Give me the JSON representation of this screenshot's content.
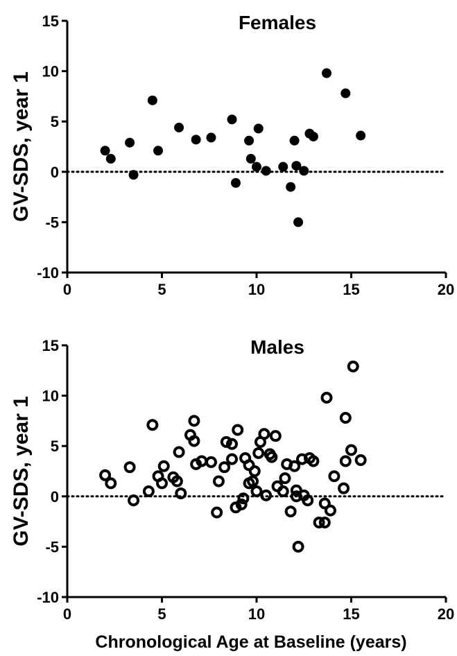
{
  "chart_data": [
    {
      "type": "scatter",
      "title": "Females",
      "xlabel": "",
      "ylabel": "GV-SDS, year 1",
      "xlim": [
        0,
        20
      ],
      "ylim": [
        -10,
        15
      ],
      "xticks": [
        "0",
        "5",
        "10",
        "15",
        "20"
      ],
      "yticks": [
        "-10",
        "-5",
        "0",
        "5",
        "10",
        "15"
      ],
      "reference_line": {
        "y": 0,
        "style": "dotted"
      },
      "marker": "filled-circle",
      "color": "#000000",
      "points": [
        [
          2.0,
          2.1
        ],
        [
          2.3,
          1.3
        ],
        [
          3.3,
          2.9
        ],
        [
          3.5,
          -0.3
        ],
        [
          4.5,
          7.1
        ],
        [
          4.8,
          2.1
        ],
        [
          5.9,
          4.4
        ],
        [
          6.8,
          3.2
        ],
        [
          7.6,
          3.4
        ],
        [
          8.7,
          5.2
        ],
        [
          8.9,
          -1.1
        ],
        [
          9.6,
          3.1
        ],
        [
          9.7,
          1.3
        ],
        [
          10.0,
          0.5
        ],
        [
          10.1,
          4.3
        ],
        [
          10.5,
          0.1
        ],
        [
          11.4,
          0.5
        ],
        [
          11.8,
          -1.5
        ],
        [
          12.0,
          3.1
        ],
        [
          12.1,
          0.6
        ],
        [
          12.2,
          -5.0
        ],
        [
          12.5,
          0.1
        ],
        [
          12.8,
          3.8
        ],
        [
          13.0,
          3.5
        ],
        [
          13.7,
          9.8
        ],
        [
          14.7,
          7.8
        ],
        [
          15.5,
          3.6
        ]
      ]
    },
    {
      "type": "scatter",
      "title": "Males",
      "xlabel": "Chronological Age at Baseline (years)",
      "ylabel": "GV-SDS, year 1",
      "xlim": [
        0,
        20
      ],
      "ylim": [
        -10,
        15
      ],
      "xticks": [
        "0",
        "5",
        "10",
        "15",
        "20"
      ],
      "yticks": [
        "-10",
        "-5",
        "0",
        "5",
        "10",
        "15"
      ],
      "reference_line": {
        "y": 0,
        "style": "dotted"
      },
      "marker": "open-circle",
      "color": "#000000",
      "points": [
        [
          2.0,
          2.1
        ],
        [
          2.3,
          1.3
        ],
        [
          3.3,
          2.9
        ],
        [
          3.5,
          -0.4
        ],
        [
          4.3,
          0.5
        ],
        [
          4.5,
          7.1
        ],
        [
          4.8,
          2.0
        ],
        [
          5.0,
          1.3
        ],
        [
          5.1,
          3.0
        ],
        [
          5.6,
          1.9
        ],
        [
          5.8,
          1.5
        ],
        [
          5.9,
          4.4
        ],
        [
          6.0,
          0.3
        ],
        [
          6.5,
          6.1
        ],
        [
          6.7,
          5.5
        ],
        [
          6.7,
          7.5
        ],
        [
          6.8,
          3.2
        ],
        [
          7.1,
          3.5
        ],
        [
          7.6,
          3.4
        ],
        [
          7.9,
          -1.6
        ],
        [
          8.0,
          1.5
        ],
        [
          8.3,
          2.9
        ],
        [
          8.4,
          5.4
        ],
        [
          8.7,
          5.2
        ],
        [
          8.7,
          3.7
        ],
        [
          8.9,
          -1.1
        ],
        [
          9.0,
          6.6
        ],
        [
          9.2,
          -0.8
        ],
        [
          9.3,
          -0.2
        ],
        [
          9.4,
          3.8
        ],
        [
          9.6,
          3.1
        ],
        [
          9.6,
          1.3
        ],
        [
          9.8,
          1.5
        ],
        [
          9.9,
          2.5
        ],
        [
          10.0,
          0.5
        ],
        [
          10.1,
          4.3
        ],
        [
          10.2,
          5.4
        ],
        [
          10.4,
          6.2
        ],
        [
          10.5,
          0.1
        ],
        [
          10.7,
          4.2
        ],
        [
          10.8,
          3.9
        ],
        [
          11.0,
          6.0
        ],
        [
          11.1,
          1.0
        ],
        [
          11.4,
          0.5
        ],
        [
          11.5,
          1.8
        ],
        [
          11.6,
          3.2
        ],
        [
          11.8,
          -1.5
        ],
        [
          12.0,
          3.0
        ],
        [
          12.1,
          0.6
        ],
        [
          12.1,
          0.0
        ],
        [
          12.2,
          -5.0
        ],
        [
          12.4,
          3.7
        ],
        [
          12.5,
          0.1
        ],
        [
          12.7,
          -0.4
        ],
        [
          12.8,
          3.8
        ],
        [
          13.0,
          3.5
        ],
        [
          13.3,
          -2.6
        ],
        [
          13.6,
          -2.6
        ],
        [
          13.6,
          -0.7
        ],
        [
          13.7,
          9.8
        ],
        [
          13.9,
          -1.4
        ],
        [
          14.1,
          2.0
        ],
        [
          14.6,
          0.8
        ],
        [
          14.7,
          7.8
        ],
        [
          14.7,
          3.5
        ],
        [
          15.0,
          4.6
        ],
        [
          15.1,
          12.9
        ],
        [
          15.5,
          3.6
        ]
      ]
    }
  ]
}
